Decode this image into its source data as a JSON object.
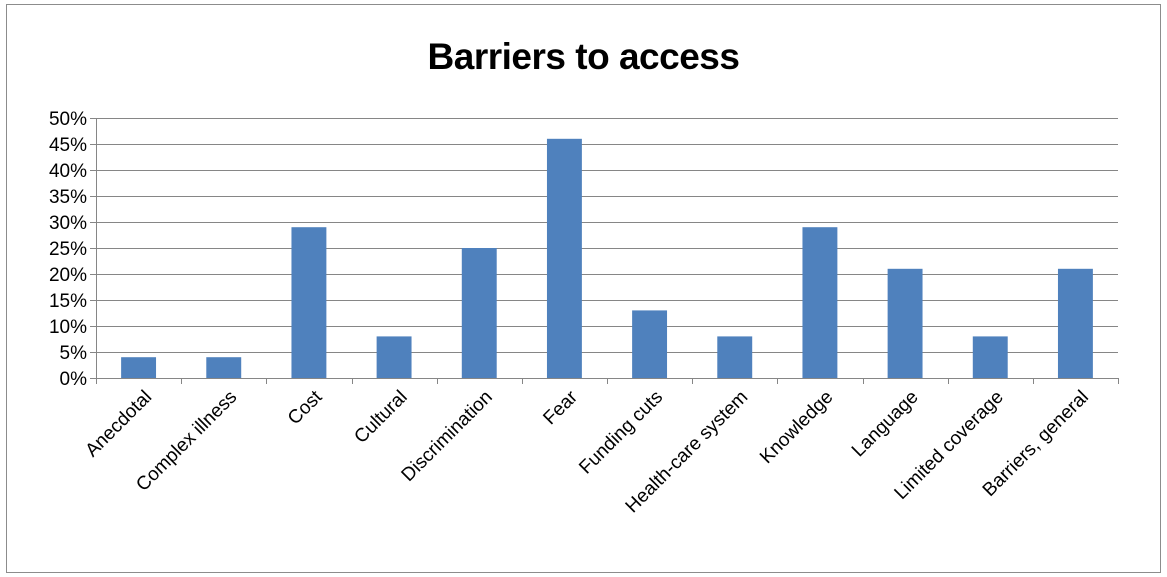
{
  "chart_data": {
    "type": "bar",
    "title": "Barriers to access",
    "xlabel": "",
    "ylabel": "",
    "categories": [
      "Anecdotal",
      "Complex illness",
      "Cost",
      "Cultural",
      "Discrimination",
      "Fear",
      "Funding cuts",
      "Health-care system",
      "Knowledge",
      "Language",
      "Limited coverage",
      "Barriers, general"
    ],
    "values": [
      0.04,
      0.04,
      0.29,
      0.08,
      0.25,
      0.46,
      0.13,
      0.08,
      0.29,
      0.21,
      0.08,
      0.21
    ],
    "ylim": [
      0,
      0.5
    ],
    "yticks": [
      0,
      0.05,
      0.1,
      0.15,
      0.2,
      0.25,
      0.3,
      0.35,
      0.4,
      0.45,
      0.5
    ],
    "ytick_labels": [
      "0%",
      "5%",
      "10%",
      "15%",
      "20%",
      "25%",
      "30%",
      "35%",
      "40%",
      "45%",
      "50%"
    ],
    "grid": true,
    "legend": "none",
    "bar_color": "#4f81bd",
    "grid_color": "#868686",
    "axis_color": "#868686"
  }
}
